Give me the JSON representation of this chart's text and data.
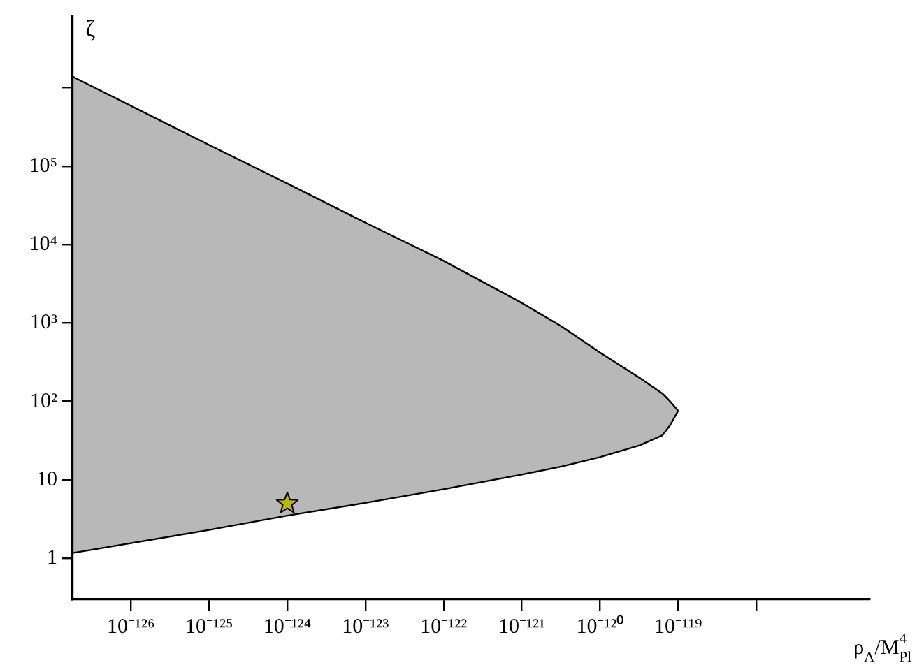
{
  "chart_data": {
    "type": "area",
    "xlabel": "ρ$_{Λ}$/M$_{Pl}$$^{4}$",
    "ylabel": "ζ",
    "log": "xy",
    "xlim": [
      1.8e-127,
      2.8e-117
    ],
    "ylim": [
      0.32,
      8000000.0
    ],
    "xticks": [
      {
        "value": 1e-126,
        "label": "10⁻¹²⁶"
      },
      {
        "value": 1e-125,
        "label": "10⁻¹²⁵"
      },
      {
        "value": 1e-124,
        "label": "10⁻¹²⁴"
      },
      {
        "value": 1e-123,
        "label": "10⁻¹²³"
      },
      {
        "value": 1e-122,
        "label": "10⁻¹²²"
      },
      {
        "value": 1e-121,
        "label": "10⁻¹²¹"
      },
      {
        "value": 1e-120,
        "label": "10⁻¹²⁰"
      },
      {
        "value": 1e-119,
        "label": "10⁻¹¹⁹"
      },
      {
        "value": 1e-118,
        "label": null
      }
    ],
    "yticks": [
      1,
      10,
      {
        "value": 100,
        "label": "10²"
      },
      {
        "value": 1000,
        "label": "10³"
      },
      {
        "value": 10000,
        "label": "10⁴"
      },
      {
        "value": 100000,
        "label": "10⁵"
      },
      {
        "value": 1000000,
        "label": null
      }
    ],
    "grid": false,
    "legend": false,
    "series": [
      {
        "type": "line",
        "color": "#000000",
        "x": [
          1.8e-127,
          1e-125,
          1e-124,
          1e-123,
          1e-122,
          1e-121,
          3.2e-121,
          1e-120,
          3.2e-120,
          6.3e-120,
          7.9e-120,
          1e-119
        ],
        "values": [
          1.17,
          2.3,
          3.5,
          5.1,
          7.6,
          11.7,
          14.8,
          19.5,
          27.5,
          37,
          50,
          76
        ]
      },
      {
        "color": "#000000",
        "x": [
          1.8e-127,
          1e-125,
          1e-124,
          1e-123,
          1e-122,
          1e-121,
          3.2e-121,
          1e-120,
          3.2e-120,
          6.3e-120,
          7.9e-120,
          1e-119
        ],
        "values": [
          1380000,
          186000,
          60000,
          19000,
          6200,
          1800,
          910,
          420,
          200,
          126,
          100,
          76
        ]
      },
      {
        "type": "scatter",
        "color": "#ffff00",
        "marker": "star",
        "x": [
          1e-124
        ],
        "values": [
          5
        ]
      }
    ]
  }
}
